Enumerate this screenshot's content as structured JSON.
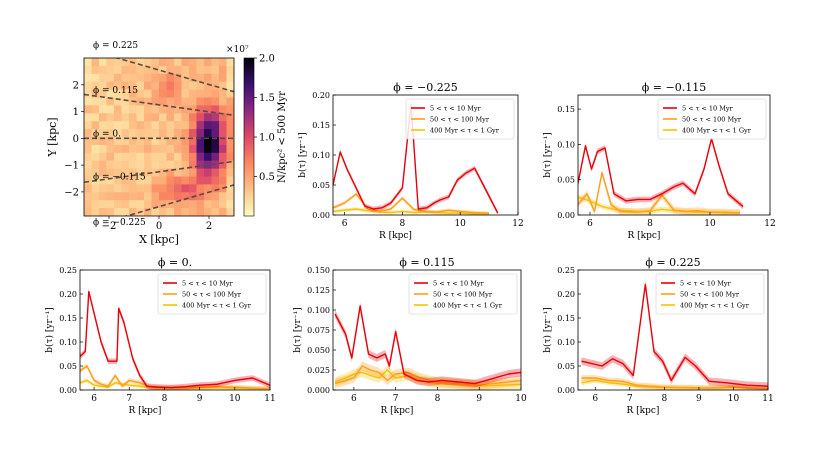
{
  "chart_data": [
    {
      "type": "heatmap",
      "id": "map",
      "xlabel": "X [kpc]",
      "ylabel": "Y [kpc]",
      "xlim": [
        -3.0,
        3.0
      ],
      "ylim": [
        -2.9,
        3.0
      ],
      "xticks": [
        "−2",
        "0",
        "2"
      ],
      "xtick_values": [
        -2,
        0,
        2
      ],
      "yticks": [
        "2",
        "1",
        "0",
        "−1",
        "−2"
      ],
      "ytick_values": [
        2,
        1,
        0,
        -1,
        -2
      ],
      "colorbar": {
        "label": "N/kpc² < 500 Myr",
        "exponent": "×10⁷",
        "range": [
          0.0,
          2.0
        ],
        "ticks": [
          "2.0",
          "1.5",
          "1.0",
          "0.5"
        ],
        "tick_values": [
          2.0,
          1.5,
          1.0,
          0.5
        ],
        "colors": [
          "#fcfdbf",
          "#fec287",
          "#fb8861",
          "#de4968",
          "#8c2981",
          "#3b0f70",
          "#000004"
        ]
      },
      "phi_lines": [
        {
          "label": "ϕ = 0.225",
          "slope": -0.27,
          "y0": 2.55
        },
        {
          "label": "ϕ = 0.115",
          "slope": -0.13,
          "y0": 1.25
        },
        {
          "label": "ϕ = 0.",
          "slope": 0.0,
          "y0": 0.0
        },
        {
          "label": "ϕ = −0.115",
          "slope": 0.13,
          "y0": -1.25
        },
        {
          "label": "ϕ = −0.225",
          "slope": 0.27,
          "y0": -2.55
        }
      ]
    },
    {
      "type": "line",
      "id": "p1",
      "title": "ϕ = −0.225",
      "xlabel": "R [kpc]",
      "ylabel": "b(τ) [yr⁻¹]",
      "xlim": [
        5.6,
        12.0
      ],
      "ylim": [
        0.0,
        0.2
      ],
      "xticks": [
        6,
        8,
        10,
        12
      ],
      "yticks": [
        0.0,
        0.05,
        0.1,
        0.15,
        0.2
      ],
      "ytick_labels": [
        "0.00",
        "0.05",
        "0.10",
        "0.15",
        "0.20"
      ],
      "legend": "upper right",
      "series": [
        {
          "name": "5 < τ < 10 Myr",
          "color": "#e8000b",
          "band": 0.004,
          "x": [
            5.6,
            5.85,
            6.1,
            6.4,
            6.7,
            7.0,
            7.3,
            7.6,
            8.0,
            8.3,
            8.55,
            8.85,
            9.1,
            9.3,
            9.6,
            9.9,
            10.2,
            10.5,
            10.8,
            11.3
          ],
          "y": [
            0.05,
            0.105,
            0.075,
            0.045,
            0.015,
            0.01,
            0.012,
            0.02,
            0.045,
            0.185,
            0.01,
            0.012,
            0.02,
            0.025,
            0.03,
            0.058,
            0.07,
            0.078,
            0.05,
            0.003
          ]
        },
        {
          "name": "50 < τ < 100 Myr",
          "color": "#ff9e1b",
          "band": 0.003,
          "x": [
            5.6,
            6.0,
            6.4,
            6.8,
            7.2,
            7.6,
            8.0,
            8.4,
            8.8,
            9.2,
            9.6,
            10.0,
            10.5,
            11.0
          ],
          "y": [
            0.012,
            0.02,
            0.035,
            0.01,
            0.006,
            0.01,
            0.028,
            0.009,
            0.006,
            0.005,
            0.008,
            0.006,
            0.004,
            0.003
          ]
        },
        {
          "name": "400 Myr < τ < 1 Gyr",
          "color": "#f5c400",
          "band": 0.003,
          "x": [
            5.6,
            6.0,
            6.4,
            6.8,
            7.2,
            7.6,
            8.0,
            8.4,
            8.8,
            9.2,
            9.6,
            10.0,
            10.5,
            11.0
          ],
          "y": [
            0.006,
            0.008,
            0.01,
            0.007,
            0.005,
            0.004,
            0.006,
            0.004,
            0.005,
            0.004,
            0.003,
            0.003,
            0.002,
            0.002
          ]
        }
      ]
    },
    {
      "type": "line",
      "id": "p2",
      "title": "ϕ = −0.115",
      "xlabel": "R [kpc]",
      "ylabel": "b(τ) [yr⁻¹]",
      "xlim": [
        5.6,
        12.0
      ],
      "ylim": [
        0.0,
        0.17
      ],
      "xticks": [
        6,
        8,
        10,
        12
      ],
      "yticks": [
        0.0,
        0.05,
        0.1,
        0.15
      ],
      "ytick_labels": [
        "0.00",
        "0.05",
        "0.10",
        "0.15"
      ],
      "legend": "upper right",
      "series": [
        {
          "name": "5 < τ < 10 Myr",
          "color": "#e8000b",
          "band": 0.004,
          "x": [
            5.6,
            5.85,
            6.05,
            6.25,
            6.5,
            6.8,
            7.2,
            7.6,
            8.0,
            8.4,
            8.8,
            9.1,
            9.5,
            9.8,
            10.05,
            10.3,
            10.6,
            11.1
          ],
          "y": [
            0.045,
            0.098,
            0.065,
            0.09,
            0.095,
            0.03,
            0.02,
            0.022,
            0.022,
            0.03,
            0.04,
            0.045,
            0.03,
            0.065,
            0.108,
            0.07,
            0.03,
            0.012
          ]
        },
        {
          "name": "50 < τ < 100 Myr",
          "color": "#ff9e1b",
          "band": 0.005,
          "x": [
            5.6,
            5.9,
            6.15,
            6.4,
            6.7,
            7.0,
            7.5,
            8.0,
            8.4,
            8.8,
            9.2,
            9.6,
            10.0,
            10.5,
            11.0
          ],
          "y": [
            0.015,
            0.03,
            0.005,
            0.06,
            0.015,
            0.005,
            0.004,
            0.006,
            0.028,
            0.007,
            0.005,
            0.006,
            0.004,
            0.004,
            0.003
          ]
        },
        {
          "name": "400 Myr < τ < 1 Gyr",
          "color": "#f5c400",
          "band": 0.004,
          "x": [
            5.6,
            6.0,
            6.4,
            6.8,
            7.2,
            7.6,
            8.0,
            8.4,
            8.8,
            9.2,
            9.6,
            10.0,
            10.5,
            11.0
          ],
          "y": [
            0.025,
            0.02,
            0.012,
            0.008,
            0.006,
            0.005,
            0.005,
            0.008,
            0.006,
            0.005,
            0.004,
            0.004,
            0.003,
            0.003
          ]
        }
      ]
    },
    {
      "type": "line",
      "id": "p3",
      "title": "ϕ = 0.",
      "xlabel": "R [kpc]",
      "ylabel": "b(τ) [yr⁻¹]",
      "xlim": [
        5.6,
        11.0
      ],
      "ylim": [
        0.0,
        0.25
      ],
      "xticks": [
        6,
        7,
        8,
        9,
        10,
        11
      ],
      "yticks": [
        0.0,
        0.05,
        0.1,
        0.15,
        0.2,
        0.25
      ],
      "ytick_labels": [
        "0.00",
        "0.05",
        "0.10",
        "0.15",
        "0.20",
        "0.25"
      ],
      "legend": "upper right",
      "series": [
        {
          "name": "5 < τ < 10 Myr",
          "color": "#e8000b",
          "band": 0.006,
          "x": [
            5.6,
            5.75,
            5.85,
            6.0,
            6.2,
            6.4,
            6.65,
            6.7,
            6.85,
            7.1,
            7.3,
            7.5,
            7.8,
            8.2,
            8.6,
            9.0,
            9.5,
            10.0,
            10.5,
            11.0
          ],
          "y": [
            0.07,
            0.08,
            0.205,
            0.16,
            0.1,
            0.06,
            0.06,
            0.17,
            0.14,
            0.065,
            0.03,
            0.008,
            0.006,
            0.005,
            0.007,
            0.01,
            0.012,
            0.02,
            0.025,
            0.01
          ]
        },
        {
          "name": "50 < τ < 100 Myr",
          "color": "#ff9e1b",
          "band": 0.005,
          "x": [
            5.6,
            5.8,
            6.0,
            6.2,
            6.4,
            6.6,
            6.8,
            7.0,
            7.3,
            7.6,
            8.0,
            8.5,
            9.0,
            9.5,
            10.0,
            10.5,
            11.0
          ],
          "y": [
            0.04,
            0.05,
            0.02,
            0.012,
            0.008,
            0.03,
            0.008,
            0.02,
            0.015,
            0.006,
            0.005,
            0.005,
            0.006,
            0.007,
            0.006,
            0.004,
            0.003
          ]
        },
        {
          "name": "400 Myr < τ < 1 Gyr",
          "color": "#f5c400",
          "band": 0.004,
          "x": [
            5.6,
            5.8,
            6.0,
            6.2,
            6.4,
            6.6,
            6.8,
            7.0,
            7.3,
            7.6,
            8.0,
            8.5,
            9.0,
            9.5,
            10.0,
            10.5,
            11.0
          ],
          "y": [
            0.015,
            0.02,
            0.01,
            0.008,
            0.006,
            0.015,
            0.012,
            0.01,
            0.008,
            0.005,
            0.004,
            0.004,
            0.004,
            0.005,
            0.004,
            0.003,
            0.003
          ]
        }
      ]
    },
    {
      "type": "line",
      "id": "p4",
      "title": "ϕ = 0.115",
      "xlabel": "R [kpc]",
      "ylabel": "b(τ) [yr⁻¹]",
      "xlim": [
        5.5,
        10.0
      ],
      "ylim": [
        0.0,
        0.15
      ],
      "xticks": [
        6,
        7,
        8,
        9,
        10
      ],
      "yticks": [
        0.0,
        0.025,
        0.05,
        0.075,
        0.1,
        0.125,
        0.15
      ],
      "ytick_labels": [
        "0.000",
        "0.025",
        "0.050",
        "0.075",
        "0.100",
        "0.125",
        "0.150"
      ],
      "legend": "upper right",
      "series": [
        {
          "name": "5 < τ < 10 Myr",
          "color": "#e8000b",
          "band": 0.005,
          "x": [
            5.55,
            5.8,
            5.95,
            6.15,
            6.35,
            6.55,
            6.75,
            6.85,
            7.0,
            7.2,
            7.5,
            7.8,
            8.1,
            8.5,
            8.9,
            9.3,
            9.7,
            10.0
          ],
          "y": [
            0.095,
            0.07,
            0.04,
            0.105,
            0.045,
            0.04,
            0.045,
            0.03,
            0.073,
            0.02,
            0.012,
            0.01,
            0.012,
            0.01,
            0.008,
            0.014,
            0.02,
            0.022
          ]
        },
        {
          "name": "50 < τ < 100 Myr",
          "color": "#ff9e1b",
          "band": 0.006,
          "x": [
            5.55,
            5.8,
            6.0,
            6.2,
            6.4,
            6.6,
            6.8,
            7.0,
            7.3,
            7.6,
            8.0,
            8.5,
            9.0,
            9.5,
            10.0
          ],
          "y": [
            0.008,
            0.012,
            0.015,
            0.03,
            0.025,
            0.022,
            0.012,
            0.02,
            0.022,
            0.015,
            0.01,
            0.008,
            0.006,
            0.009,
            0.012
          ]
        },
        {
          "name": "400 Myr < τ < 1 Gyr",
          "color": "#f5c400",
          "band": 0.006,
          "x": [
            5.55,
            5.8,
            6.0,
            6.2,
            6.4,
            6.6,
            6.8,
            7.0,
            7.3,
            7.6,
            8.0,
            8.5,
            9.0,
            9.5,
            10.0
          ],
          "y": [
            0.01,
            0.015,
            0.02,
            0.022,
            0.018,
            0.015,
            0.025,
            0.015,
            0.018,
            0.012,
            0.008,
            0.007,
            0.005,
            0.006,
            0.007
          ]
        }
      ]
    },
    {
      "type": "line",
      "id": "p5",
      "title": "ϕ = 0.225",
      "xlabel": "R [kpc]",
      "ylabel": "b(τ) [yr⁻¹]",
      "xlim": [
        5.5,
        11.0
      ],
      "ylim": [
        0.0,
        0.25
      ],
      "xticks": [
        6,
        7,
        8,
        9,
        10,
        11
      ],
      "yticks": [
        0.0,
        0.05,
        0.1,
        0.15,
        0.2,
        0.25
      ],
      "ytick_labels": [
        "0.00",
        "0.05",
        "0.10",
        "0.15",
        "0.20",
        "0.25"
      ],
      "legend": "upper right",
      "series": [
        {
          "name": "5 < τ < 10 Myr",
          "color": "#e8000b",
          "band": 0.008,
          "x": [
            5.6,
            5.9,
            6.2,
            6.5,
            6.8,
            7.1,
            7.45,
            7.7,
            7.95,
            8.2,
            8.6,
            8.9,
            9.3,
            9.8,
            10.4,
            11.0
          ],
          "y": [
            0.06,
            0.055,
            0.05,
            0.065,
            0.055,
            0.03,
            0.22,
            0.08,
            0.06,
            0.02,
            0.068,
            0.05,
            0.018,
            0.015,
            0.01,
            0.008
          ]
        },
        {
          "name": "50 < τ < 100 Myr",
          "color": "#ff9e1b",
          "band": 0.006,
          "x": [
            5.6,
            6.0,
            6.4,
            6.8,
            7.2,
            7.6,
            8.0,
            8.4,
            8.8,
            9.2,
            9.6,
            10.0,
            10.5,
            11.0
          ],
          "y": [
            0.025,
            0.025,
            0.02,
            0.018,
            0.01,
            0.008,
            0.006,
            0.005,
            0.005,
            0.004,
            0.005,
            0.006,
            0.004,
            0.003
          ]
        },
        {
          "name": "400 Myr < τ < 1 Gyr",
          "color": "#f5c400",
          "band": 0.005,
          "x": [
            5.6,
            6.0,
            6.4,
            6.8,
            7.2,
            7.6,
            8.0,
            8.4,
            8.8,
            9.2,
            9.6,
            10.0,
            10.5,
            11.0
          ],
          "y": [
            0.015,
            0.02,
            0.015,
            0.012,
            0.008,
            0.006,
            0.005,
            0.005,
            0.004,
            0.004,
            0.004,
            0.005,
            0.004,
            0.003
          ]
        }
      ]
    }
  ]
}
